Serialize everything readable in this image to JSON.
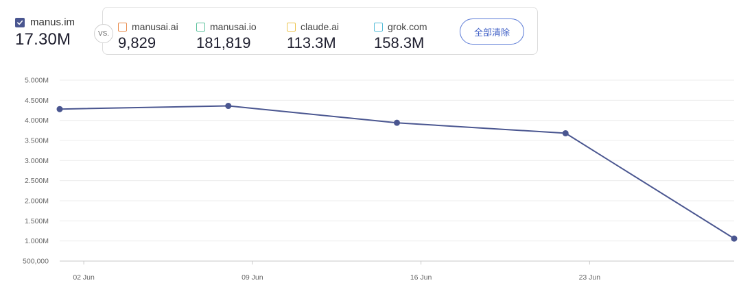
{
  "primary": {
    "name": "manus.im",
    "value": "17.30M",
    "color": "#4a5690"
  },
  "vs_label": "VS.",
  "comparisons": [
    {
      "name": "manusai.ai",
      "value": "9,829",
      "color": "#e98a4a"
    },
    {
      "name": "manusai.io",
      "value": "181,819",
      "color": "#5cc29d"
    },
    {
      "name": "claude.ai",
      "value": "113.3M",
      "color": "#ecc44d"
    },
    {
      "name": "grok.com",
      "value": "158.3M",
      "color": "#54bcd8"
    }
  ],
  "clear_button_label": "全部清除",
  "chart_data": {
    "type": "line",
    "series": [
      {
        "name": "manus.im",
        "color": "#4a5690",
        "points": [
          {
            "x": "2025-06-01",
            "y": 4280000
          },
          {
            "x": "2025-06-08",
            "y": 4360000
          },
          {
            "x": "2025-06-15",
            "y": 3940000
          },
          {
            "x": "2025-06-22",
            "y": 3680000
          },
          {
            "x": "2025-06-29",
            "y": 1060000
          }
        ]
      }
    ],
    "y_ticks": [
      {
        "value": 5000000,
        "label": "5.000M"
      },
      {
        "value": 4500000,
        "label": "4.500M"
      },
      {
        "value": 4000000,
        "label": "4.000M"
      },
      {
        "value": 3500000,
        "label": "3.500M"
      },
      {
        "value": 3000000,
        "label": "3.000M"
      },
      {
        "value": 2500000,
        "label": "2.500M"
      },
      {
        "value": 2000000,
        "label": "2.000M"
      },
      {
        "value": 1500000,
        "label": "1.500M"
      },
      {
        "value": 1000000,
        "label": "1.000M"
      },
      {
        "value": 500000,
        "label": "500,000"
      }
    ],
    "x_ticks": [
      {
        "value": "2025-06-02",
        "label": "02 Jun"
      },
      {
        "value": "2025-06-09",
        "label": "09 Jun"
      },
      {
        "value": "2025-06-16",
        "label": "16 Jun"
      },
      {
        "value": "2025-06-23",
        "label": "23 Jun"
      }
    ],
    "ylim": [
      500000,
      5000000
    ],
    "xlim": [
      "2025-06-01",
      "2025-06-29"
    ],
    "grid": true,
    "title": "",
    "xlabel": "",
    "ylabel": ""
  }
}
